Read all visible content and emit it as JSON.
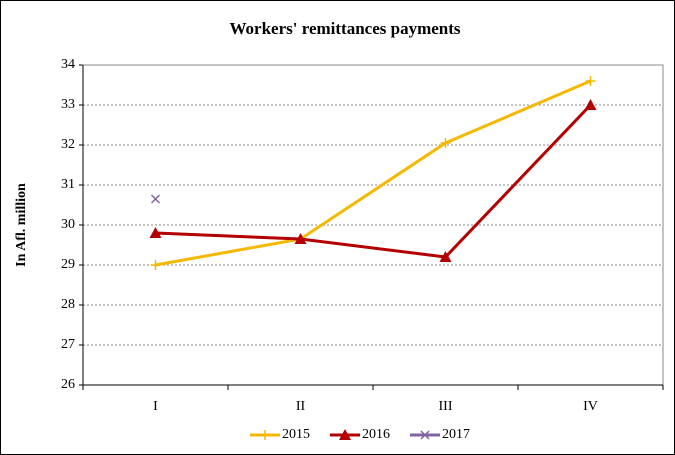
{
  "chart_data": {
    "type": "line",
    "title": "Workers' remittances payments",
    "y_label": "In Afl. million",
    "categories": [
      "I",
      "II",
      "III",
      "IV"
    ],
    "series": [
      {
        "name": "2015",
        "color": "#f5b800",
        "marker": "plus",
        "values": [
          29.0,
          29.65,
          32.05,
          33.6
        ]
      },
      {
        "name": "2016",
        "color": "#b40000",
        "marker": "triangle",
        "values": [
          29.8,
          29.65,
          29.2,
          33.0
        ]
      },
      {
        "name": "2017",
        "color": "#8064a2",
        "marker": "x",
        "values": [
          30.65,
          null,
          null,
          null
        ]
      }
    ],
    "ylim": [
      26,
      34
    ],
    "yticks": [
      26,
      27,
      28,
      29,
      30,
      31,
      32,
      33,
      34
    ],
    "grid": true,
    "legend": "bottom"
  }
}
